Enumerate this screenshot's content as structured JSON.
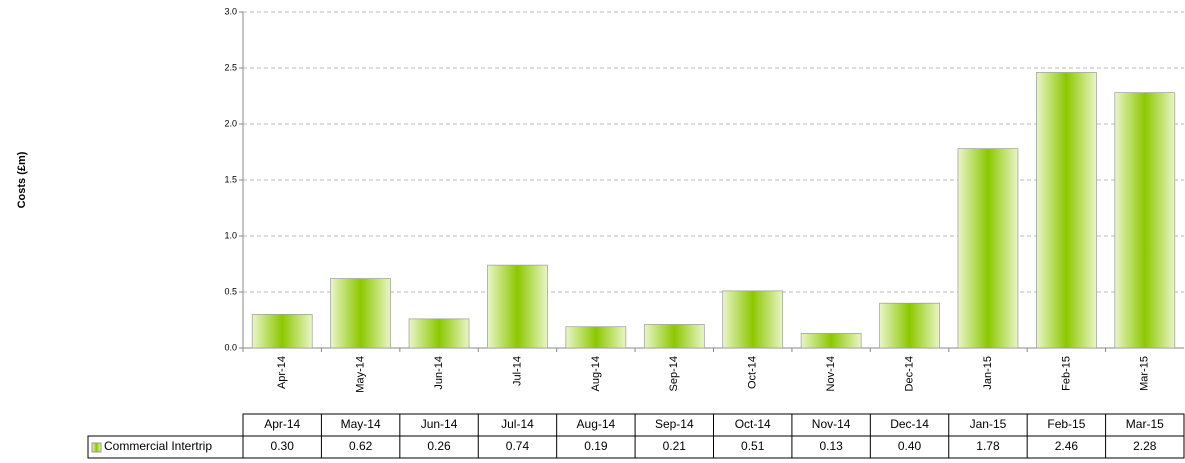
{
  "chart_data": {
    "type": "bar",
    "y_label": "Costs (£m)",
    "categories": [
      "Apr-14",
      "May-14",
      "Jun-14",
      "Jul-14",
      "Aug-14",
      "Sep-14",
      "Oct-14",
      "Nov-14",
      "Dec-14",
      "Jan-15",
      "Feb-15",
      "Mar-15"
    ],
    "series": [
      {
        "name": "Commercial Intertrip",
        "color": "#8cc800",
        "values": [
          0.3,
          0.62,
          0.26,
          0.74,
          0.19,
          0.21,
          0.51,
          0.13,
          0.4,
          1.78,
          2.46,
          2.28
        ],
        "value_labels": [
          "0.30",
          "0.62",
          "0.26",
          "0.74",
          "0.19",
          "0.21",
          "0.51",
          "0.13",
          "0.40",
          "1.78",
          "2.46",
          "2.28"
        ]
      }
    ],
    "ylim": [
      0,
      3
    ],
    "yticks": [
      {
        "value": 0,
        "label": "0.0"
      },
      {
        "value": 0.5,
        "label": "0.5"
      },
      {
        "value": 1,
        "label": "1.0"
      },
      {
        "value": 1.5,
        "label": "1.5"
      },
      {
        "value": 2,
        "label": "2.0"
      },
      {
        "value": 2.5,
        "label": "2.5"
      },
      {
        "value": 3,
        "label": "3.0"
      }
    ],
    "grid": true
  }
}
